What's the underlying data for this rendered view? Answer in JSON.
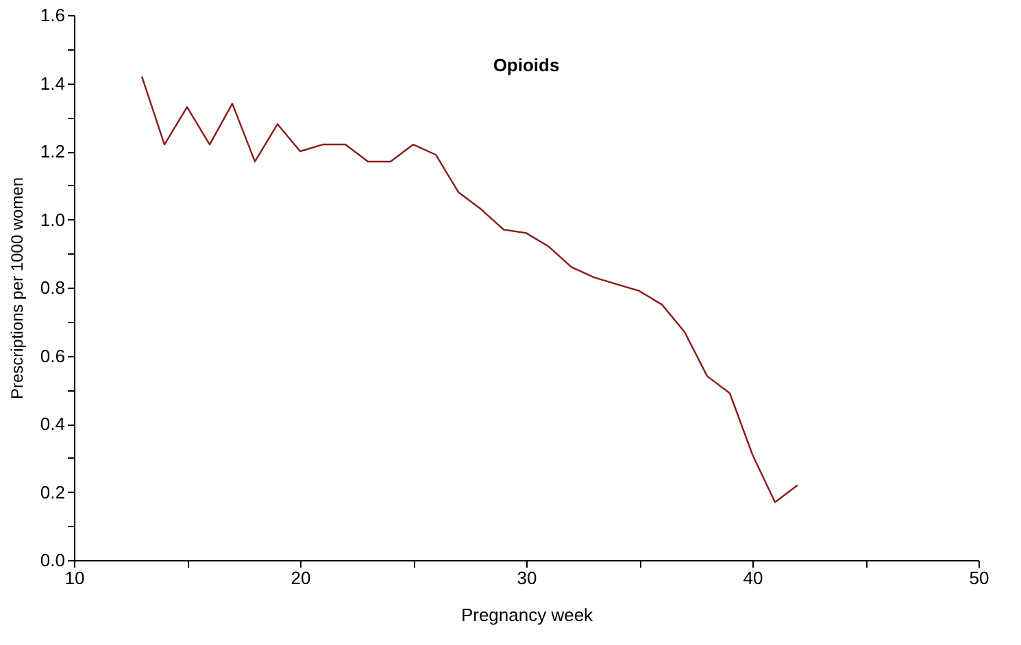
{
  "chart_data": {
    "type": "line",
    "title": "Opioids",
    "xlabel": "Pregnancy week",
    "ylabel": "Prescriptions per 1000 women",
    "x": [
      13,
      14,
      15,
      16,
      17,
      18,
      19,
      20,
      21,
      22,
      23,
      24,
      25,
      26,
      27,
      28,
      29,
      30,
      31,
      32,
      33,
      34,
      35,
      36,
      37,
      38,
      39,
      40,
      41,
      42
    ],
    "series": [
      {
        "color": "#8b1a1a",
        "values": [
          1.42,
          1.22,
          1.33,
          1.22,
          1.34,
          1.17,
          1.28,
          1.2,
          1.22,
          1.22,
          1.17,
          1.17,
          1.22,
          1.19,
          1.08,
          1.03,
          0.97,
          0.96,
          0.92,
          0.86,
          0.83,
          0.81,
          0.79,
          0.75,
          0.67,
          0.54,
          0.49,
          0.31,
          0.17,
          0.22
        ]
      }
    ],
    "xlim": [
      10,
      50
    ],
    "xticks": [
      10,
      {
        "value": 15,
        "label": null
      },
      20,
      {
        "value": 25,
        "label": null
      },
      30,
      {
        "value": 35,
        "label": null
      },
      40,
      {
        "value": 45,
        "label": null
      },
      50
    ],
    "ylim": [
      0,
      1.6
    ],
    "yticks": [
      {
        "value": 0,
        "label": "0.0"
      },
      {
        "value": 0.1,
        "label": null
      },
      0.2,
      {
        "value": 0.3,
        "label": null
      },
      0.4,
      {
        "value": 0.5,
        "label": null
      },
      0.6,
      {
        "value": 0.7,
        "label": null
      },
      0.8,
      {
        "value": 0.9,
        "label": null
      },
      {
        "value": 1,
        "label": "1.0"
      },
      {
        "value": 1.1,
        "label": null
      },
      1.2,
      {
        "value": 1.3,
        "label": null
      },
      1.4,
      {
        "value": 1.5,
        "label": null
      },
      1.6
    ],
    "grid": false,
    "legend": false,
    "marker": "none",
    "line_style": "solid"
  }
}
